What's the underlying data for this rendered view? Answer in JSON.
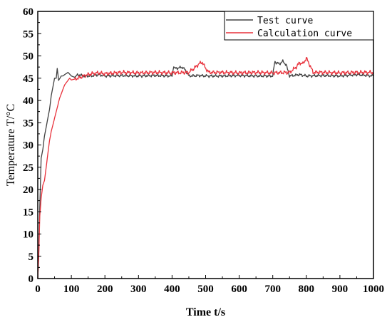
{
  "chart_data": {
    "type": "line",
    "title": "",
    "xlabel": "Time t/s",
    "ylabel": "Temperature T/°C",
    "xlim": [
      0,
      1000
    ],
    "ylim": [
      0,
      60
    ],
    "xticks": [
      "0",
      "100",
      "200",
      "300",
      "400",
      "500",
      "600",
      "700",
      "800",
      "900",
      "1000"
    ],
    "yticks": [
      "0",
      "5",
      "10",
      "15",
      "20",
      "25",
      "30",
      "35",
      "40",
      "45",
      "50",
      "55",
      "60"
    ],
    "grid": false,
    "legend_position": "top-right",
    "series": [
      {
        "name": "Test curve",
        "color": "#404040",
        "x": [
          0,
          3,
          6,
          10,
          15,
          20,
          25,
          30,
          35,
          40,
          45,
          50,
          55,
          58,
          62,
          66,
          70,
          75,
          80,
          90,
          100,
          110,
          120,
          140,
          160,
          180,
          200,
          250,
          300,
          350,
          400,
          405,
          410,
          420,
          430,
          440,
          450,
          480,
          500,
          550,
          600,
          650,
          700,
          705,
          710,
          720,
          730,
          740,
          750,
          780,
          800,
          850,
          900,
          950,
          1000
        ],
        "y": [
          0,
          6,
          16,
          27,
          29,
          32,
          34,
          36,
          38,
          41,
          43,
          45,
          45,
          47.2,
          44.5,
          45,
          45.5,
          45.5,
          45.8,
          46.3,
          45.5,
          45.2,
          45.8,
          45.5,
          45.5,
          45.8,
          45.5,
          45.6,
          45.5,
          45.6,
          45.5,
          47.6,
          47.2,
          47.3,
          47.5,
          46.8,
          45.5,
          45.6,
          45.5,
          45.5,
          45.6,
          45.5,
          45.5,
          48.5,
          48.5,
          48.2,
          48.8,
          48.0,
          45.5,
          45.8,
          45.5,
          45.6,
          45.5,
          45.8,
          45.5
        ]
      },
      {
        "name": "Calculation curve",
        "color": "#e8303a",
        "x": [
          0,
          3,
          6,
          10,
          15,
          20,
          25,
          30,
          35,
          40,
          45,
          50,
          55,
          60,
          65,
          70,
          75,
          80,
          85,
          90,
          95,
          100,
          110,
          120,
          140,
          160,
          180,
          200,
          250,
          300,
          350,
          400,
          450,
          470,
          480,
          490,
          500,
          510,
          550,
          600,
          650,
          700,
          750,
          770,
          780,
          790,
          800,
          810,
          820,
          850,
          900,
          950,
          1000
        ],
        "y": [
          0,
          5,
          14,
          18,
          21,
          22,
          25,
          28,
          31,
          33,
          34.5,
          36,
          37.5,
          39,
          40.5,
          41.5,
          42.5,
          43.5,
          44,
          44.5,
          45,
          44.6,
          44.8,
          45,
          45.6,
          46,
          46.2,
          46,
          46.3,
          46.2,
          46.3,
          46.2,
          46.3,
          47.5,
          48.2,
          48.6,
          47.2,
          46.3,
          46.3,
          46.2,
          46.3,
          46.2,
          46.3,
          47.5,
          48.5,
          48.2,
          49.5,
          48.0,
          46.3,
          46.3,
          46.2,
          46.3,
          46.3
        ]
      }
    ]
  }
}
